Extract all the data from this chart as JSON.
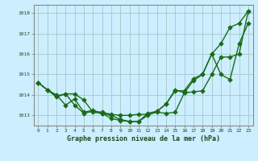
{
  "series1_x": [
    0,
    1,
    2,
    3,
    4,
    5,
    6,
    7,
    8,
    9,
    10,
    11,
    12,
    13,
    14,
    15,
    16,
    17,
    18,
    19,
    20,
    21,
    22,
    23
  ],
  "series1_y": [
    1014.6,
    1014.25,
    1013.95,
    1014.05,
    1014.05,
    1013.75,
    1013.15,
    1013.1,
    1012.85,
    1012.75,
    1012.7,
    1012.7,
    1013.1,
    1013.2,
    1013.55,
    1014.2,
    1014.2,
    1014.8,
    1015.0,
    1016.0,
    1016.5,
    1017.3,
    1017.5,
    1018.1
  ],
  "series2_x": [
    0,
    1,
    2,
    3,
    4,
    5,
    6,
    7,
    8,
    9,
    10,
    11,
    12,
    13,
    14,
    15,
    16,
    17,
    18,
    19,
    20,
    21,
    22,
    23
  ],
  "series2_y": [
    1014.6,
    1014.25,
    1013.9,
    1014.05,
    1013.5,
    1013.1,
    1013.2,
    1013.15,
    1013.05,
    1013.0,
    1013.0,
    1013.05,
    1013.05,
    1013.15,
    1013.1,
    1013.15,
    1014.1,
    1014.15,
    1014.2,
    1015.0,
    1015.85,
    1015.85,
    1016.0,
    1018.1
  ],
  "series3_x": [
    0,
    1,
    2,
    3,
    4,
    5,
    6,
    7,
    8,
    9,
    10,
    11,
    12,
    13,
    14,
    15,
    16,
    17,
    18,
    19,
    20,
    21,
    22,
    23
  ],
  "series3_y": [
    1014.6,
    1014.25,
    1014.0,
    1013.5,
    1013.8,
    1013.15,
    1013.25,
    1013.1,
    1013.0,
    1012.8,
    1012.7,
    1012.7,
    1013.0,
    1013.2,
    1013.55,
    1014.25,
    1014.1,
    1014.7,
    1015.0,
    1016.0,
    1015.0,
    1014.75,
    1016.5,
    1017.5
  ],
  "line_color": "#1a6b1a",
  "bg_color": "#cceeff",
  "grid_color": "#aacccc",
  "xlabel": "Graphe pression niveau de la mer (hPa)",
  "ylim": [
    1012.5,
    1018.4
  ],
  "xlim": [
    -0.5,
    23.5
  ],
  "xticks": [
    0,
    1,
    2,
    3,
    4,
    5,
    6,
    7,
    8,
    9,
    10,
    11,
    12,
    13,
    14,
    15,
    16,
    17,
    18,
    19,
    20,
    21,
    22,
    23
  ],
  "yticks": [
    1013,
    1014,
    1015,
    1016,
    1017,
    1018
  ]
}
